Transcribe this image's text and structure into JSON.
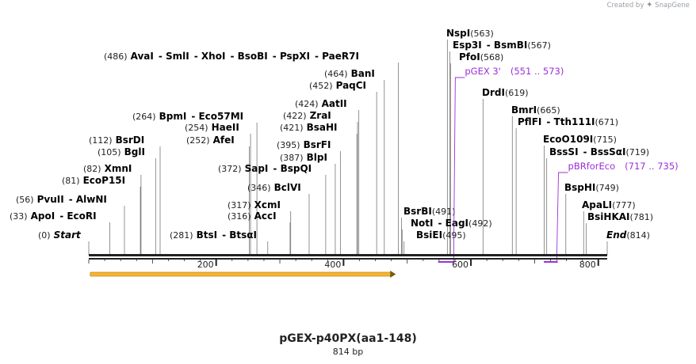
{
  "credit": {
    "prefix": "Created by",
    "brand": "SnapGene"
  },
  "plasmid": {
    "name": "pGEX-p40PX(aa1-148)",
    "length_label": "814 bp",
    "length": 814
  },
  "colors": {
    "enzyme_text": "#000000",
    "position_text": "#222222",
    "leader": "#777777",
    "primer": "#9b30d9",
    "feature_fill": "#f4b535",
    "feature_stroke": "#c98a12",
    "axis": "#222222"
  },
  "ruler": {
    "ticks": [
      {
        "pos": 200,
        "label": "200"
      },
      {
        "pos": 400,
        "label": "400"
      },
      {
        "pos": 600,
        "label": "600"
      },
      {
        "pos": 800,
        "label": "800"
      }
    ]
  },
  "features": [
    {
      "name": "arrow-feature",
      "start": 1,
      "end": 482,
      "direction": "forward"
    }
  ],
  "primers": [
    {
      "name": "pGEX 3'",
      "range": "(551 .. 573)",
      "start": 551,
      "end": 573,
      "direction": "reverse",
      "label_site": 573
    },
    {
      "name": "pBRforEco",
      "range": "(717 .. 735)",
      "start": 717,
      "end": 735,
      "direction": "reverse",
      "label_site": 735
    }
  ],
  "sites": [
    {
      "pos": 0,
      "pos_label": "(0)",
      "names": [
        "Start"
      ],
      "italic": true,
      "pos_first": true
    },
    {
      "pos": 33,
      "pos_label": "(33)",
      "names": [
        "ApoI",
        "EcoRI"
      ],
      "pos_first": true
    },
    {
      "pos": 56,
      "pos_label": "(56)",
      "names": [
        "PvuII",
        "AlwNI"
      ],
      "pos_first": true
    },
    {
      "pos": 81,
      "pos_label": "(81)",
      "names": [
        "EcoP15I"
      ],
      "pos_first": true
    },
    {
      "pos": 82,
      "pos_label": "(82)",
      "names": [
        "XmnI"
      ],
      "pos_first": true
    },
    {
      "pos": 105,
      "pos_label": "(105)",
      "names": [
        "BglI"
      ],
      "pos_first": true
    },
    {
      "pos": 112,
      "pos_label": "(112)",
      "names": [
        "BsrDI"
      ],
      "pos_first": true
    },
    {
      "pos": 264,
      "pos_label": "(264)",
      "names": [
        "BpmI",
        "Eco57MI"
      ],
      "pos_first": true
    },
    {
      "pos": 254,
      "pos_label": "(254)",
      "names": [
        "HaeII"
      ],
      "pos_first": true
    },
    {
      "pos": 252,
      "pos_label": "(252)",
      "names": [
        "AfeI"
      ],
      "pos_first": true
    },
    {
      "pos": 281,
      "pos_label": "(281)",
      "names": [
        "BtsI",
        "BtsαI"
      ],
      "pos_first": true
    },
    {
      "pos": 316,
      "pos_label": "(316)",
      "names": [
        "AccI"
      ],
      "pos_first": true
    },
    {
      "pos": 317,
      "pos_label": "(317)",
      "names": [
        "XcmI"
      ],
      "pos_first": true
    },
    {
      "pos": 346,
      "pos_label": "(346)",
      "names": [
        "BclVI"
      ],
      "pos_first": true
    },
    {
      "pos": 372,
      "pos_label": "(372)",
      "names": [
        "SapI",
        "BspQI"
      ],
      "pos_first": true
    },
    {
      "pos": 387,
      "pos_label": "(387)",
      "names": [
        "BlpI"
      ],
      "pos_first": true
    },
    {
      "pos": 395,
      "pos_label": "(395)",
      "names": [
        "BsrFI"
      ],
      "pos_first": true
    },
    {
      "pos": 421,
      "pos_label": "(421)",
      "names": [
        "BsaHI"
      ],
      "pos_first": true
    },
    {
      "pos": 422,
      "pos_label": "(422)",
      "names": [
        "ZraI"
      ],
      "pos_first": true
    },
    {
      "pos": 424,
      "pos_label": "(424)",
      "names": [
        "AatII"
      ],
      "pos_first": true
    },
    {
      "pos": 452,
      "pos_label": "(452)",
      "names": [
        "PaqCI"
      ],
      "pos_first": true
    },
    {
      "pos": 464,
      "pos_label": "(464)",
      "names": [
        "BanI"
      ],
      "pos_first": true
    },
    {
      "pos": 486,
      "pos_label": "(486)",
      "names": [
        "AvaI",
        "SmlI",
        "XhoI",
        "BsoBI",
        "PspXI",
        "PaeR7I"
      ],
      "pos_first": true
    },
    {
      "pos": 491,
      "pos_label": "(491)",
      "names": [
        "BsrBI"
      ],
      "pos_first": false
    },
    {
      "pos": 492,
      "pos_label": "(492)",
      "names": [
        "NotI",
        "EagI"
      ],
      "pos_first": false
    },
    {
      "pos": 495,
      "pos_label": "(495)",
      "names": [
        "BsiEI"
      ],
      "pos_first": false
    },
    {
      "pos": 563,
      "pos_label": "(563)",
      "names": [
        "NspI"
      ],
      "pos_first": false
    },
    {
      "pos": 567,
      "pos_label": "(567)",
      "names": [
        "Esp3I",
        "BsmBI"
      ],
      "pos_first": false
    },
    {
      "pos": 568,
      "pos_label": "(568)",
      "names": [
        "PfoI"
      ],
      "pos_first": false
    },
    {
      "pos": 619,
      "pos_label": "(619)",
      "names": [
        "DrdI"
      ],
      "pos_first": false
    },
    {
      "pos": 665,
      "pos_label": "(665)",
      "names": [
        "BmrI"
      ],
      "pos_first": false
    },
    {
      "pos": 671,
      "pos_label": "(671)",
      "names": [
        "PflFI",
        "Tth111I"
      ],
      "pos_first": false
    },
    {
      "pos": 715,
      "pos_label": "(715)",
      "names": [
        "EcoO109I"
      ],
      "pos_first": false
    },
    {
      "pos": 719,
      "pos_label": "(719)",
      "names": [
        "BssSI",
        "BssSαI"
      ],
      "pos_first": false
    },
    {
      "pos": 749,
      "pos_label": "(749)",
      "names": [
        "BspHI"
      ],
      "pos_first": false
    },
    {
      "pos": 777,
      "pos_label": "(777)",
      "names": [
        "ApaLI"
      ],
      "pos_first": false
    },
    {
      "pos": 781,
      "pos_label": "(781)",
      "names": [
        "BsiHKAI"
      ],
      "pos_first": false
    },
    {
      "pos": 814,
      "pos_label": "(814)",
      "names": [
        "End"
      ],
      "italic": true,
      "pos_first": false
    }
  ]
}
